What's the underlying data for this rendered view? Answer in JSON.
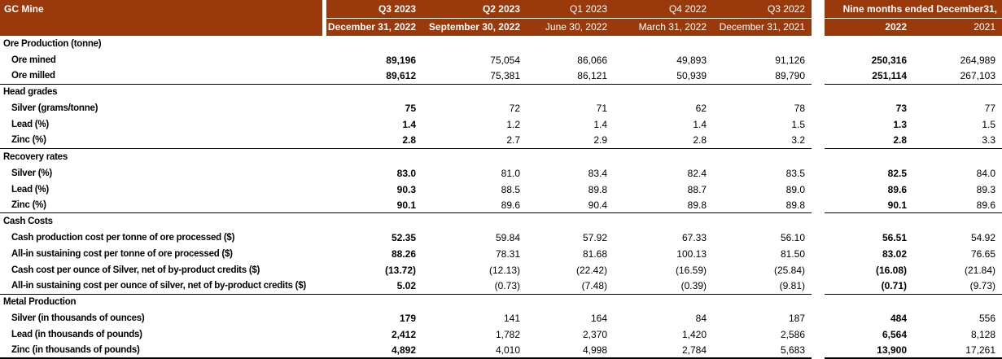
{
  "colors": {
    "header_bg": "#9a390b",
    "header_text": "#ffffff",
    "body_text": "#000000",
    "section_border": "#000000"
  },
  "table": {
    "title": "GC Mine",
    "quarter_columns": [
      {
        "quarter": "Q3 2023",
        "date": "December 31, 2022"
      },
      {
        "quarter": "Q2 2023",
        "date": "September 30, 2022"
      },
      {
        "quarter": "Q1 2023",
        "date": "June 30, 2022"
      },
      {
        "quarter": "Q4 2022",
        "date": "March 31, 2022"
      },
      {
        "quarter": "Q3 2022",
        "date": "December 31, 2021"
      }
    ],
    "nine_months_header": "Nine months ended December31,",
    "nine_months_years": [
      "2022",
      "2021"
    ],
    "sections": [
      {
        "name": "Ore Production (tonne)",
        "rows": [
          {
            "label": "Ore mined",
            "values": [
              "89,196",
              "75,054",
              "86,066",
              "49,893",
              "91,126",
              "250,316",
              "264,989"
            ]
          },
          {
            "label": "Ore milled",
            "values": [
              "89,612",
              "75,381",
              "86,121",
              "50,939",
              "89,790",
              "251,114",
              "267,103"
            ]
          }
        ]
      },
      {
        "name": "Head grades",
        "rows": [
          {
            "label": "Silver (grams/tonne)",
            "values": [
              "75",
              "72",
              "71",
              "62",
              "78",
              "73",
              "77"
            ]
          },
          {
            "label": "Lead (%)",
            "values": [
              "1.4",
              "1.2",
              "1.4",
              "1.4",
              "1.5",
              "1.3",
              "1.5"
            ]
          },
          {
            "label": "Zinc (%)",
            "values": [
              "2.8",
              "2.7",
              "2.9",
              "2.8",
              "3.2",
              "2.8",
              "3.3"
            ]
          }
        ]
      },
      {
        "name": "Recovery rates",
        "rows": [
          {
            "label": "Silver (%)",
            "values": [
              "83.0",
              "81.0",
              "83.4",
              "82.4",
              "83.5",
              "82.5",
              "84.0"
            ]
          },
          {
            "label": "Lead (%)",
            "values": [
              "90.3",
              "88.5",
              "89.8",
              "88.7",
              "89.0",
              "89.6",
              "89.3"
            ]
          },
          {
            "label": "Zinc (%)",
            "values": [
              "90.1",
              "89.6",
              "90.4",
              "89.8",
              "89.8",
              "90.1",
              "89.6"
            ]
          }
        ]
      },
      {
        "name": "Cash Costs",
        "rows": [
          {
            "label": "Cash production cost per tonne of ore processed ($)",
            "values": [
              "52.35",
              "59.84",
              "57.92",
              "67.33",
              "56.10",
              "56.51",
              "54.92"
            ]
          },
          {
            "label": "All-in sustaining cost per tonne of ore processed ($)",
            "values": [
              "88.26",
              "78.31",
              "81.68",
              "100.13",
              "81.50",
              "83.02",
              "76.65"
            ]
          },
          {
            "label": "Cash cost per ounce of Silver, net of by-product credits ($)",
            "values": [
              "(13.72)",
              "(12.13)",
              "(22.42)",
              "(16.59)",
              "(25.84)",
              "(16.08)",
              "(21.84)"
            ]
          },
          {
            "label": "All-in sustaining cost per ounce of silver, net of by-product credits ($)",
            "values": [
              "5.02",
              "(0.73)",
              "(7.48)",
              "(0.39)",
              "(9.81)",
              "(0.71)",
              "(9.73)"
            ]
          }
        ]
      },
      {
        "name": "Metal Production",
        "rows": [
          {
            "label": "Silver (in thousands of ounces)",
            "values": [
              "179",
              "141",
              "164",
              "84",
              "187",
              "484",
              "556"
            ]
          },
          {
            "label": "Lead (in thousands of pounds)",
            "values": [
              "2,412",
              "1,782",
              "2,370",
              "1,420",
              "2,586",
              "6,564",
              "8,128"
            ]
          },
          {
            "label": "Zinc (in thousands of pounds)",
            "values": [
              "4,892",
              "4,010",
              "4,998",
              "2,784",
              "5,683",
              "13,900",
              "17,261"
            ]
          }
        ]
      }
    ]
  }
}
